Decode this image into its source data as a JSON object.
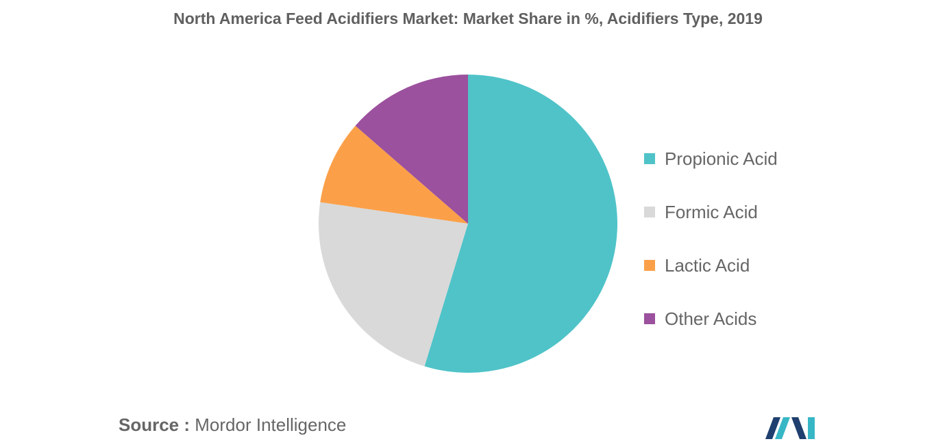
{
  "chart_data": {
    "type": "pie",
    "title": "North America Feed Acidifiers Market: Market Share in %, Acidifiers Type, 2019",
    "slices": [
      {
        "name": "Propionic Acid",
        "value": 54.7,
        "color": "#4fc3c8"
      },
      {
        "name": "Formic Acid",
        "value": 22.6,
        "color": "#d9d9d9"
      },
      {
        "name": "Lactic Acid",
        "value": 9.1,
        "color": "#fba049"
      },
      {
        "name": "Other Acids",
        "value": 13.6,
        "color": "#9b519d"
      }
    ],
    "legend_position": "right"
  },
  "source": {
    "prefix": "Source :",
    "name": "Mordor Intelligence"
  },
  "logo": {
    "icon": "mordor-intelligence-logo",
    "colors": [
      "#1f3f6e",
      "#37b7c5"
    ]
  }
}
